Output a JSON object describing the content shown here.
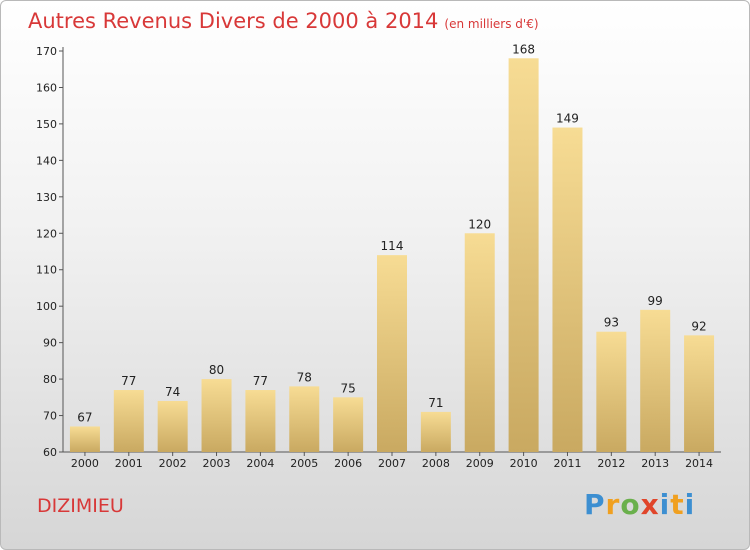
{
  "title": "Autres Revenus Divers de 2000 à 2014",
  "unit_label": "(en milliers d'€)",
  "city": "DIZIMIEU",
  "logo_text": "Proxiti",
  "colors": {
    "title": "#d83838",
    "bar_light": "#f7dc94",
    "bar_dark": "#c9a961",
    "axis": "#555555",
    "grid": "#cccccc"
  },
  "chart_data": {
    "type": "bar",
    "title": "Autres Revenus Divers de 2000 à 2014",
    "subtitle": "(en milliers d'€)",
    "xlabel": "",
    "ylabel": "",
    "categories": [
      "2000",
      "2001",
      "2002",
      "2003",
      "2004",
      "2005",
      "2006",
      "2007",
      "2008",
      "2009",
      "2010",
      "2011",
      "2012",
      "2013",
      "2014"
    ],
    "values": [
      67,
      77,
      74,
      80,
      77,
      78,
      75,
      114,
      71,
      120,
      168,
      149,
      93,
      99,
      92
    ],
    "ylim": [
      60,
      170
    ],
    "yticks": [
      60,
      70,
      80,
      90,
      100,
      110,
      120,
      130,
      140,
      150,
      160,
      170
    ],
    "grid": false,
    "legend": "none"
  }
}
